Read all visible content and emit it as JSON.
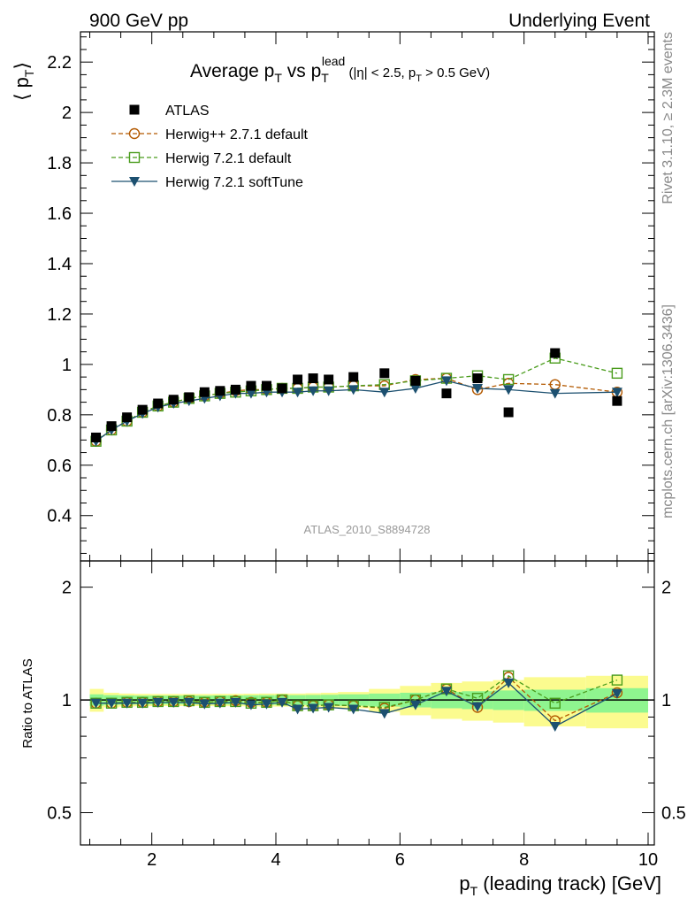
{
  "header": {
    "left": "900 GeV pp",
    "right": "Underlying Event"
  },
  "side_text": {
    "top": "Rivet 3.1.10, ≥ 2.3M events",
    "bottom": "mcplots.cern.ch [arXiv:1306.3436]"
  },
  "chart_data": [
    {
      "type": "scatter",
      "panel": "main",
      "title": "Average p_T vs p_T^lead (|η| < 2.5, p_T > 0.5 GeV)",
      "title_parts": {
        "main": "Average p",
        "sub1": "T",
        "mid": " vs p",
        "sub2": "T",
        "sup2": "lead",
        "cond_open": "(|η| < 2.5, p",
        "cond_sub": "T",
        "cond_close": " > 0.5 GeV)"
      },
      "ylabel": "⟨ p_T ⟩",
      "ylabel_parts": {
        "open": "⟨ p",
        "sub": "T",
        "close": "⟩"
      },
      "watermark": "ATLAS_2010_S8894728",
      "xlim": [
        0.85,
        10.1
      ],
      "ylim": [
        0.22,
        2.32
      ],
      "yticks": [
        0.4,
        0.6,
        0.8,
        1,
        1.2,
        1.4,
        1.6,
        1.8,
        2,
        2.2
      ],
      "ytick_labels": [
        "0.4",
        "0.6",
        "0.8",
        "1",
        "1.2",
        "1.4",
        "1.6",
        "1.8",
        "2",
        "2.2"
      ],
      "x": [
        1.1,
        1.35,
        1.6,
        1.85,
        2.1,
        2.35,
        2.6,
        2.85,
        3.1,
        3.35,
        3.6,
        3.85,
        4.1,
        4.35,
        4.6,
        4.85,
        5.25,
        5.75,
        6.25,
        6.75,
        7.25,
        7.75,
        8.5,
        9.5
      ],
      "series": [
        {
          "name": "ATLAS",
          "style": "data",
          "color": "#000000",
          "marker": "filled-square",
          "values": [
            0.71,
            0.755,
            0.79,
            0.82,
            0.845,
            0.86,
            0.87,
            0.89,
            0.895,
            0.9,
            0.915,
            0.915,
            0.905,
            0.94,
            0.945,
            0.94,
            0.95,
            0.965,
            0.935,
            0.885,
            0.945,
            0.81,
            1.045,
            0.855
          ]
        },
        {
          "name": "Herwig++ 2.7.1 default",
          "style": "dashed",
          "color": "#b35900",
          "marker": "open-circle",
          "values": [
            0.695,
            0.74,
            0.775,
            0.81,
            0.835,
            0.85,
            0.865,
            0.875,
            0.885,
            0.895,
            0.9,
            0.9,
            0.905,
            0.905,
            0.91,
            0.91,
            0.915,
            0.915,
            0.94,
            0.945,
            0.9,
            0.925,
            0.92,
            0.89
          ]
        },
        {
          "name": "Herwig 7.2.1 default",
          "style": "dashed",
          "color": "#4a9c1c",
          "marker": "open-square",
          "values": [
            0.695,
            0.74,
            0.775,
            0.81,
            0.835,
            0.85,
            0.865,
            0.875,
            0.885,
            0.89,
            0.895,
            0.9,
            0.905,
            0.905,
            0.91,
            0.91,
            0.915,
            0.92,
            0.935,
            0.945,
            0.955,
            0.94,
            1.025,
            0.965
          ]
        },
        {
          "name": "Herwig 7.2.1 softTune",
          "style": "solid",
          "color": "#1c5070",
          "marker": "filled-triangle-down",
          "values": [
            0.695,
            0.74,
            0.775,
            0.805,
            0.83,
            0.845,
            0.855,
            0.865,
            0.875,
            0.885,
            0.885,
            0.89,
            0.89,
            0.89,
            0.895,
            0.895,
            0.9,
            0.89,
            0.905,
            0.935,
            0.905,
            0.9,
            0.885,
            0.89
          ]
        }
      ]
    },
    {
      "type": "scatter",
      "panel": "ratio",
      "ylabel": "Ratio to ATLAS",
      "xlabel": "p_T (leading track) [GeV]",
      "xlabel_parts": {
        "p": "p",
        "sub": "T",
        "rest": " (leading track) [GeV]"
      },
      "xlim": [
        0.85,
        10.1
      ],
      "ylim": [
        0.41,
        2.35
      ],
      "y_scale": "log",
      "xticks": [
        2,
        4,
        6,
        8,
        10
      ],
      "xtick_labels": [
        "2",
        "4",
        "6",
        "8",
        "10"
      ],
      "yticks": [
        0.5,
        1,
        2
      ],
      "ytick_labels": [
        "0.5",
        "1",
        "2"
      ],
      "bands": {
        "inner_color": "#8ff58f",
        "outer_color": "#fbfb8f",
        "edges": [
          1.0,
          1.225,
          1.475,
          1.725,
          1.975,
          2.225,
          2.475,
          2.725,
          2.975,
          3.225,
          3.475,
          3.725,
          3.975,
          4.225,
          4.475,
          4.725,
          5.0,
          5.5,
          6.0,
          6.5,
          7.0,
          7.5,
          8.0,
          9.0,
          10.0
        ],
        "inner_half_width": [
          0.035,
          0.03,
          0.028,
          0.027,
          0.027,
          0.027,
          0.027,
          0.027,
          0.028,
          0.028,
          0.029,
          0.03,
          0.03,
          0.03,
          0.031,
          0.032,
          0.035,
          0.04,
          0.045,
          0.05,
          0.055,
          0.06,
          0.065,
          0.075
        ],
        "outer_half_width": [
          0.07,
          0.045,
          0.04,
          0.038,
          0.037,
          0.037,
          0.037,
          0.037,
          0.038,
          0.038,
          0.039,
          0.04,
          0.04,
          0.04,
          0.042,
          0.045,
          0.05,
          0.07,
          0.09,
          0.11,
          0.12,
          0.13,
          0.15,
          0.16
        ]
      },
      "series": [
        {
          "name": "Herwig++ 2.7.1 default",
          "values": [
            0.98,
            0.98,
            0.985,
            0.985,
            0.99,
            0.99,
            0.99,
            0.985,
            0.99,
            0.995,
            0.985,
            0.985,
            1.0,
            0.965,
            0.965,
            0.97,
            0.965,
            0.95,
            1.0,
            1.07,
            0.955,
            1.15,
            0.88,
            1.045
          ]
        },
        {
          "name": "Herwig 7.2.1 default",
          "values": [
            0.98,
            0.98,
            0.985,
            0.985,
            0.99,
            0.99,
            0.995,
            0.985,
            0.99,
            0.99,
            0.98,
            0.985,
            1.0,
            0.965,
            0.965,
            0.97,
            0.965,
            0.955,
            1.0,
            1.07,
            1.01,
            1.16,
            0.98,
            1.13
          ]
        },
        {
          "name": "Herwig 7.2.1 softTune",
          "values": [
            0.98,
            0.98,
            0.98,
            0.98,
            0.985,
            0.985,
            0.985,
            0.975,
            0.98,
            0.985,
            0.97,
            0.975,
            0.985,
            0.945,
            0.95,
            0.955,
            0.945,
            0.92,
            0.97,
            1.055,
            0.96,
            1.11,
            0.85,
            1.04
          ]
        }
      ]
    }
  ]
}
